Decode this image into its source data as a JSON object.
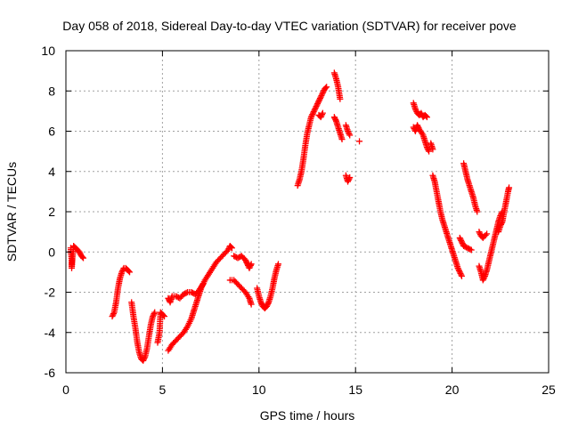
{
  "chart_data": {
    "type": "scatter",
    "title": "Day 058 of 2018, Sidereal Day-to-day VTEC variation (SDTVAR) for receiver pove",
    "xlabel": "GPS time / hours",
    "ylabel": "SDTVAR / TECUs",
    "xlim": [
      0,
      25
    ],
    "ylim": [
      -6,
      10
    ],
    "xticks": [
      "0",
      "5",
      "10",
      "15",
      "20",
      "25"
    ],
    "yticks": [
      "-6",
      "-4",
      "-2",
      "0",
      "2",
      "4",
      "6",
      "8",
      "10"
    ],
    "grid": true,
    "marker": "+",
    "color": "#ff0000",
    "segments": [
      [
        [
          0.25,
          0.2
        ],
        [
          0.3,
          -0.4
        ],
        [
          0.3,
          -0.8
        ],
        [
          0.4,
          0.3
        ],
        [
          0.5,
          0.2
        ],
        [
          0.6,
          0.1
        ],
        [
          0.7,
          0.0
        ],
        [
          0.8,
          -0.2
        ],
        [
          0.9,
          -0.3
        ]
      ],
      [
        [
          2.4,
          -3.2
        ],
        [
          2.5,
          -3.0
        ],
        [
          2.6,
          -2.5
        ],
        [
          2.7,
          -1.8
        ],
        [
          2.8,
          -1.3
        ],
        [
          2.9,
          -1.0
        ],
        [
          3.0,
          -0.8
        ],
        [
          3.1,
          -0.8
        ],
        [
          3.2,
          -0.9
        ],
        [
          3.3,
          -1.0
        ]
      ],
      [
        [
          3.4,
          -2.5
        ],
        [
          3.5,
          -3.2
        ],
        [
          3.6,
          -3.8
        ],
        [
          3.7,
          -4.5
        ],
        [
          3.8,
          -5.0
        ],
        [
          3.9,
          -5.3
        ],
        [
          4.0,
          -5.4
        ],
        [
          4.1,
          -5.2
        ],
        [
          4.2,
          -4.8
        ],
        [
          4.3,
          -4.2
        ],
        [
          4.4,
          -3.6
        ],
        [
          4.5,
          -3.2
        ],
        [
          4.6,
          -3.0
        ]
      ],
      [
        [
          4.75,
          -4.5
        ],
        [
          4.85,
          -4.0
        ],
        [
          4.9,
          -3.0
        ],
        [
          5.0,
          -3.1
        ],
        [
          5.1,
          -3.2
        ]
      ],
      [
        [
          5.3,
          -2.3
        ],
        [
          5.4,
          -2.5
        ],
        [
          5.5,
          -2.2
        ],
        [
          5.7,
          -2.2
        ],
        [
          5.9,
          -2.3
        ],
        [
          6.1,
          -2.1
        ],
        [
          6.3,
          -2.0
        ],
        [
          6.5,
          -2.0
        ],
        [
          6.7,
          -2.1
        ],
        [
          6.9,
          -1.9
        ],
        [
          7.1,
          -1.6
        ]
      ],
      [
        [
          5.3,
          -4.9
        ],
        [
          5.5,
          -4.6
        ],
        [
          5.7,
          -4.4
        ],
        [
          5.9,
          -4.2
        ],
        [
          6.1,
          -4.0
        ],
        [
          6.3,
          -3.7
        ],
        [
          6.5,
          -3.3
        ],
        [
          6.6,
          -3.0
        ],
        [
          6.7,
          -2.7
        ],
        [
          6.8,
          -2.4
        ],
        [
          6.9,
          -2.1
        ],
        [
          7.0,
          -1.8
        ],
        [
          7.2,
          -1.4
        ],
        [
          7.4,
          -1.1
        ],
        [
          7.6,
          -0.8
        ],
        [
          7.8,
          -0.5
        ],
        [
          8.0,
          -0.3
        ],
        [
          8.2,
          -0.1
        ],
        [
          8.4,
          0.1
        ],
        [
          8.5,
          0.3
        ],
        [
          8.6,
          0.2
        ]
      ],
      [
        [
          8.7,
          -0.2
        ],
        [
          8.9,
          -0.3
        ],
        [
          9.1,
          -0.2
        ],
        [
          9.3,
          -0.4
        ],
        [
          9.4,
          -0.6
        ],
        [
          9.5,
          -0.8
        ],
        [
          9.6,
          -0.6
        ]
      ],
      [
        [
          8.5,
          -1.4
        ],
        [
          8.7,
          -1.4
        ],
        [
          8.9,
          -1.6
        ],
        [
          9.1,
          -1.8
        ],
        [
          9.3,
          -2.0
        ],
        [
          9.5,
          -2.3
        ],
        [
          9.6,
          -2.6
        ]
      ],
      [
        [
          9.9,
          -1.8
        ],
        [
          10.0,
          -2.2
        ],
        [
          10.1,
          -2.5
        ],
        [
          10.2,
          -2.7
        ],
        [
          10.3,
          -2.8
        ],
        [
          10.4,
          -2.7
        ],
        [
          10.5,
          -2.5
        ],
        [
          10.6,
          -2.2
        ],
        [
          10.7,
          -1.8
        ],
        [
          10.8,
          -1.3
        ],
        [
          10.9,
          -0.9
        ],
        [
          11.0,
          -0.6
        ]
      ],
      [
        [
          12.0,
          3.3
        ],
        [
          12.1,
          3.6
        ],
        [
          12.2,
          4.0
        ],
        [
          12.3,
          4.6
        ],
        [
          12.4,
          5.3
        ],
        [
          12.5,
          5.9
        ],
        [
          12.6,
          6.3
        ],
        [
          12.7,
          6.7
        ],
        [
          12.8,
          6.9
        ],
        [
          12.9,
          7.1
        ],
        [
          13.0,
          7.3
        ],
        [
          13.1,
          7.5
        ],
        [
          13.2,
          7.7
        ],
        [
          13.3,
          7.9
        ],
        [
          13.4,
          8.1
        ],
        [
          13.5,
          8.2
        ]
      ],
      [
        [
          13.1,
          6.8
        ],
        [
          13.2,
          6.7
        ],
        [
          13.3,
          6.9
        ]
      ],
      [
        [
          13.9,
          8.9
        ],
        [
          14.0,
          8.6
        ],
        [
          14.1,
          8.2
        ],
        [
          14.2,
          7.6
        ]
      ],
      [
        [
          13.9,
          6.7
        ],
        [
          14.0,
          6.5
        ],
        [
          14.1,
          6.2
        ],
        [
          14.2,
          5.9
        ],
        [
          14.3,
          5.6
        ]
      ],
      [
        [
          14.5,
          6.3
        ],
        [
          14.6,
          6.0
        ],
        [
          14.7,
          5.8
        ]
      ],
      [
        [
          14.5,
          3.8
        ],
        [
          14.6,
          3.5
        ],
        [
          14.7,
          3.7
        ]
      ],
      [
        [
          15.2,
          5.5
        ]
      ],
      [
        [
          18.0,
          7.4
        ],
        [
          18.1,
          7.1
        ],
        [
          18.2,
          6.9
        ],
        [
          18.3,
          6.8
        ],
        [
          18.4,
          6.9
        ],
        [
          18.5,
          6.7
        ],
        [
          18.6,
          6.8
        ],
        [
          18.7,
          6.7
        ]
      ],
      [
        [
          18.0,
          6.2
        ],
        [
          18.1,
          6.0
        ],
        [
          18.2,
          6.3
        ],
        [
          18.3,
          6.1
        ],
        [
          18.5,
          5.8
        ],
        [
          18.6,
          5.5
        ],
        [
          18.7,
          5.2
        ],
        [
          18.8,
          5.0
        ]
      ],
      [
        [
          18.9,
          5.4
        ],
        [
          19.0,
          5.1
        ]
      ],
      [
        [
          19.0,
          3.8
        ],
        [
          19.1,
          3.5
        ],
        [
          19.2,
          3.0
        ],
        [
          19.3,
          2.5
        ],
        [
          19.4,
          2.0
        ],
        [
          19.5,
          1.6
        ],
        [
          19.6,
          1.3
        ],
        [
          19.7,
          1.0
        ],
        [
          19.8,
          0.7
        ],
        [
          19.9,
          0.4
        ],
        [
          20.0,
          0.1
        ],
        [
          20.1,
          -0.2
        ],
        [
          20.2,
          -0.5
        ],
        [
          20.3,
          -0.8
        ],
        [
          20.4,
          -1.0
        ],
        [
          20.5,
          -1.2
        ]
      ],
      [
        [
          20.4,
          0.7
        ],
        [
          20.5,
          0.5
        ],
        [
          20.6,
          0.3
        ],
        [
          20.8,
          0.2
        ],
        [
          21.0,
          0.1
        ]
      ],
      [
        [
          20.6,
          4.4
        ],
        [
          20.7,
          4.0
        ],
        [
          20.8,
          3.6
        ],
        [
          20.9,
          3.3
        ],
        [
          21.0,
          3.0
        ],
        [
          21.1,
          2.7
        ],
        [
          21.2,
          2.3
        ],
        [
          21.3,
          2.0
        ]
      ],
      [
        [
          21.4,
          1.0
        ],
        [
          21.5,
          0.8
        ],
        [
          21.6,
          0.7
        ],
        [
          21.8,
          0.9
        ]
      ],
      [
        [
          21.4,
          -0.7
        ],
        [
          21.5,
          -1.0
        ],
        [
          21.6,
          -1.4
        ],
        [
          21.7,
          -1.2
        ],
        [
          21.8,
          -0.9
        ],
        [
          21.9,
          -0.5
        ],
        [
          22.0,
          -0.1
        ],
        [
          22.1,
          0.3
        ],
        [
          22.2,
          0.7
        ],
        [
          22.3,
          1.1
        ],
        [
          22.4,
          1.5
        ],
        [
          22.5,
          1.8
        ],
        [
          22.6,
          2.0
        ]
      ],
      [
        [
          22.4,
          1.0
        ],
        [
          22.5,
          1.3
        ],
        [
          22.6,
          1.5
        ],
        [
          22.7,
          2.0
        ],
        [
          22.8,
          2.5
        ],
        [
          22.9,
          3.0
        ],
        [
          22.95,
          3.2
        ]
      ]
    ]
  }
}
